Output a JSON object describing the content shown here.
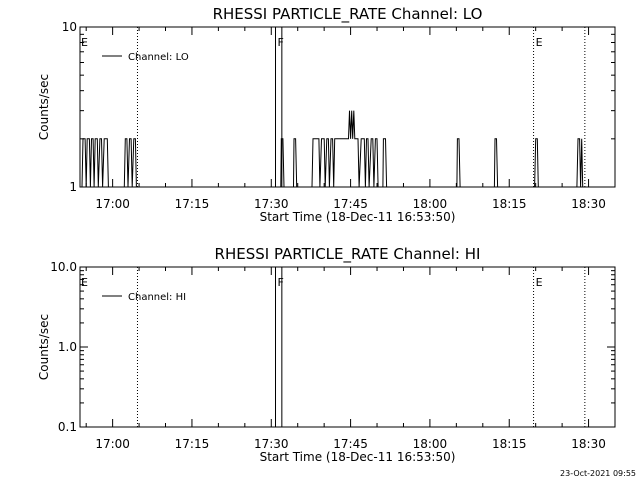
{
  "chart_data": [
    {
      "type": "line",
      "title": "RHESSI PARTICLE_RATE Channel: LO",
      "ylabel": "Counts/sec",
      "xlabel": "Start Time (18-Dec-11 16:53:50)",
      "x_tick_labels": [
        "17:00",
        "17:15",
        "17:30",
        "17:45",
        "18:00",
        "18:15",
        "18:30"
      ],
      "x_tick_minutes": [
        1020,
        1035,
        1050,
        1065,
        1080,
        1095,
        1110
      ],
      "xlim": [
        1013.83,
        1115
      ],
      "ylim": [
        1,
        10
      ],
      "yscale": "log",
      "y_tick_labels": [
        "1",
        "10"
      ],
      "y_tick_values": [
        1,
        10
      ],
      "legend": {
        "label": "Channel: LO",
        "placement": "top-left"
      },
      "series": [
        {
          "name": "Channel: LO",
          "points": [
            [
              1014.2,
              1
            ],
            [
              1014.4,
              2
            ],
            [
              1014.8,
              2
            ],
            [
              1015.0,
              1
            ],
            [
              1015.2,
              2
            ],
            [
              1015.6,
              2
            ],
            [
              1015.8,
              1
            ],
            [
              1016.0,
              2
            ],
            [
              1016.3,
              2
            ],
            [
              1016.5,
              1
            ],
            [
              1016.7,
              2
            ],
            [
              1017.1,
              2
            ],
            [
              1017.3,
              1
            ],
            [
              1017.6,
              2
            ],
            [
              1017.9,
              2
            ],
            [
              1018.1,
              1
            ],
            [
              1018.4,
              2
            ],
            [
              1019.0,
              2
            ],
            [
              1019.2,
              1
            ],
            [
              1022.2,
              1
            ],
            [
              1022.4,
              2
            ],
            [
              1022.7,
              2
            ],
            [
              1022.9,
              1
            ],
            [
              1023.2,
              2
            ],
            [
              1023.5,
              2
            ],
            [
              1023.7,
              1
            ],
            [
              1024.0,
              2
            ],
            [
              1024.3,
              2
            ],
            [
              1024.5,
              1
            ],
            [
              1051.8,
              1
            ],
            [
              1051.9,
              2
            ],
            [
              1052.2,
              2
            ],
            [
              1052.4,
              1
            ],
            [
              1054.2,
              1
            ],
            [
              1054.3,
              2
            ],
            [
              1054.6,
              2
            ],
            [
              1054.8,
              1
            ],
            [
              1057.7,
              1
            ],
            [
              1057.9,
              2
            ],
            [
              1059.0,
              2
            ],
            [
              1059.2,
              1
            ],
            [
              1059.5,
              2
            ],
            [
              1060.0,
              2
            ],
            [
              1060.2,
              1
            ],
            [
              1060.5,
              2
            ],
            [
              1060.8,
              2
            ],
            [
              1061.0,
              1
            ],
            [
              1061.3,
              2
            ],
            [
              1061.6,
              2
            ],
            [
              1061.8,
              1
            ],
            [
              1062.0,
              2
            ],
            [
              1064.6,
              2
            ],
            [
              1064.8,
              3
            ],
            [
              1065.0,
              2
            ],
            [
              1065.2,
              3
            ],
            [
              1065.4,
              2
            ],
            [
              1065.6,
              3
            ],
            [
              1065.8,
              2
            ],
            [
              1066.4,
              2
            ],
            [
              1066.6,
              1
            ],
            [
              1067.0,
              2
            ],
            [
              1067.6,
              2
            ],
            [
              1067.8,
              1
            ],
            [
              1068.0,
              2
            ],
            [
              1068.3,
              2
            ],
            [
              1068.5,
              1
            ],
            [
              1068.9,
              2
            ],
            [
              1069.2,
              2
            ],
            [
              1069.4,
              1
            ],
            [
              1069.7,
              2
            ],
            [
              1070.0,
              2
            ],
            [
              1070.2,
              1
            ],
            [
              1071.1,
              1
            ],
            [
              1071.2,
              2
            ],
            [
              1071.6,
              2
            ],
            [
              1071.8,
              1
            ],
            [
              1085.1,
              1
            ],
            [
              1085.2,
              2
            ],
            [
              1085.5,
              2
            ],
            [
              1085.7,
              1
            ],
            [
              1092.2,
              1
            ],
            [
              1092.3,
              2
            ],
            [
              1092.6,
              2
            ],
            [
              1092.8,
              1
            ],
            [
              1099.8,
              1
            ],
            [
              1100.0,
              2
            ],
            [
              1100.3,
              2
            ],
            [
              1100.5,
              1
            ],
            [
              1107.8,
              1
            ],
            [
              1108.0,
              2
            ],
            [
              1108.3,
              2
            ],
            [
              1108.5,
              1
            ],
            [
              1108.7,
              2
            ],
            [
              1108.9,
              1
            ]
          ]
        }
      ],
      "event_lines": [
        {
          "label": "E",
          "x": 1013.83,
          "style": "dotted"
        },
        {
          "label": "",
          "x": 1024.7,
          "style": "dotted"
        },
        {
          "label": "F",
          "x": 1050.8,
          "style": "solid"
        },
        {
          "label": "",
          "x": 1052.0,
          "style": "solid"
        },
        {
          "label": "E",
          "x": 1099.6,
          "style": "dotted"
        },
        {
          "label": "",
          "x": 1109.3,
          "style": "dotted"
        }
      ]
    },
    {
      "type": "line",
      "title": "RHESSI PARTICLE_RATE Channel: HI",
      "ylabel": "Counts/sec",
      "xlabel": "Start Time (18-Dec-11 16:53:50)",
      "x_tick_labels": [
        "17:00",
        "17:15",
        "17:30",
        "17:45",
        "18:00",
        "18:15",
        "18:30"
      ],
      "x_tick_minutes": [
        1020,
        1035,
        1050,
        1065,
        1080,
        1095,
        1110
      ],
      "xlim": [
        1013.83,
        1115
      ],
      "ylim": [
        0.1,
        10
      ],
      "yscale": "log",
      "y_tick_labels": [
        "0.1",
        "1.0",
        "10.0"
      ],
      "y_tick_values": [
        0.1,
        1,
        10
      ],
      "legend": {
        "label": "Channel: HI",
        "placement": "top-left"
      },
      "series": [
        {
          "name": "Channel: HI",
          "points": []
        }
      ],
      "event_lines": [
        {
          "label": "E",
          "x": 1013.83,
          "style": "dotted"
        },
        {
          "label": "",
          "x": 1024.7,
          "style": "dotted"
        },
        {
          "label": "F",
          "x": 1050.8,
          "style": "solid"
        },
        {
          "label": "",
          "x": 1052.0,
          "style": "solid"
        },
        {
          "label": "E",
          "x": 1099.6,
          "style": "dotted"
        },
        {
          "label": "",
          "x": 1109.3,
          "style": "dotted"
        }
      ]
    }
  ],
  "footer": {
    "timestamp": "23-Oct-2021 09:55"
  }
}
